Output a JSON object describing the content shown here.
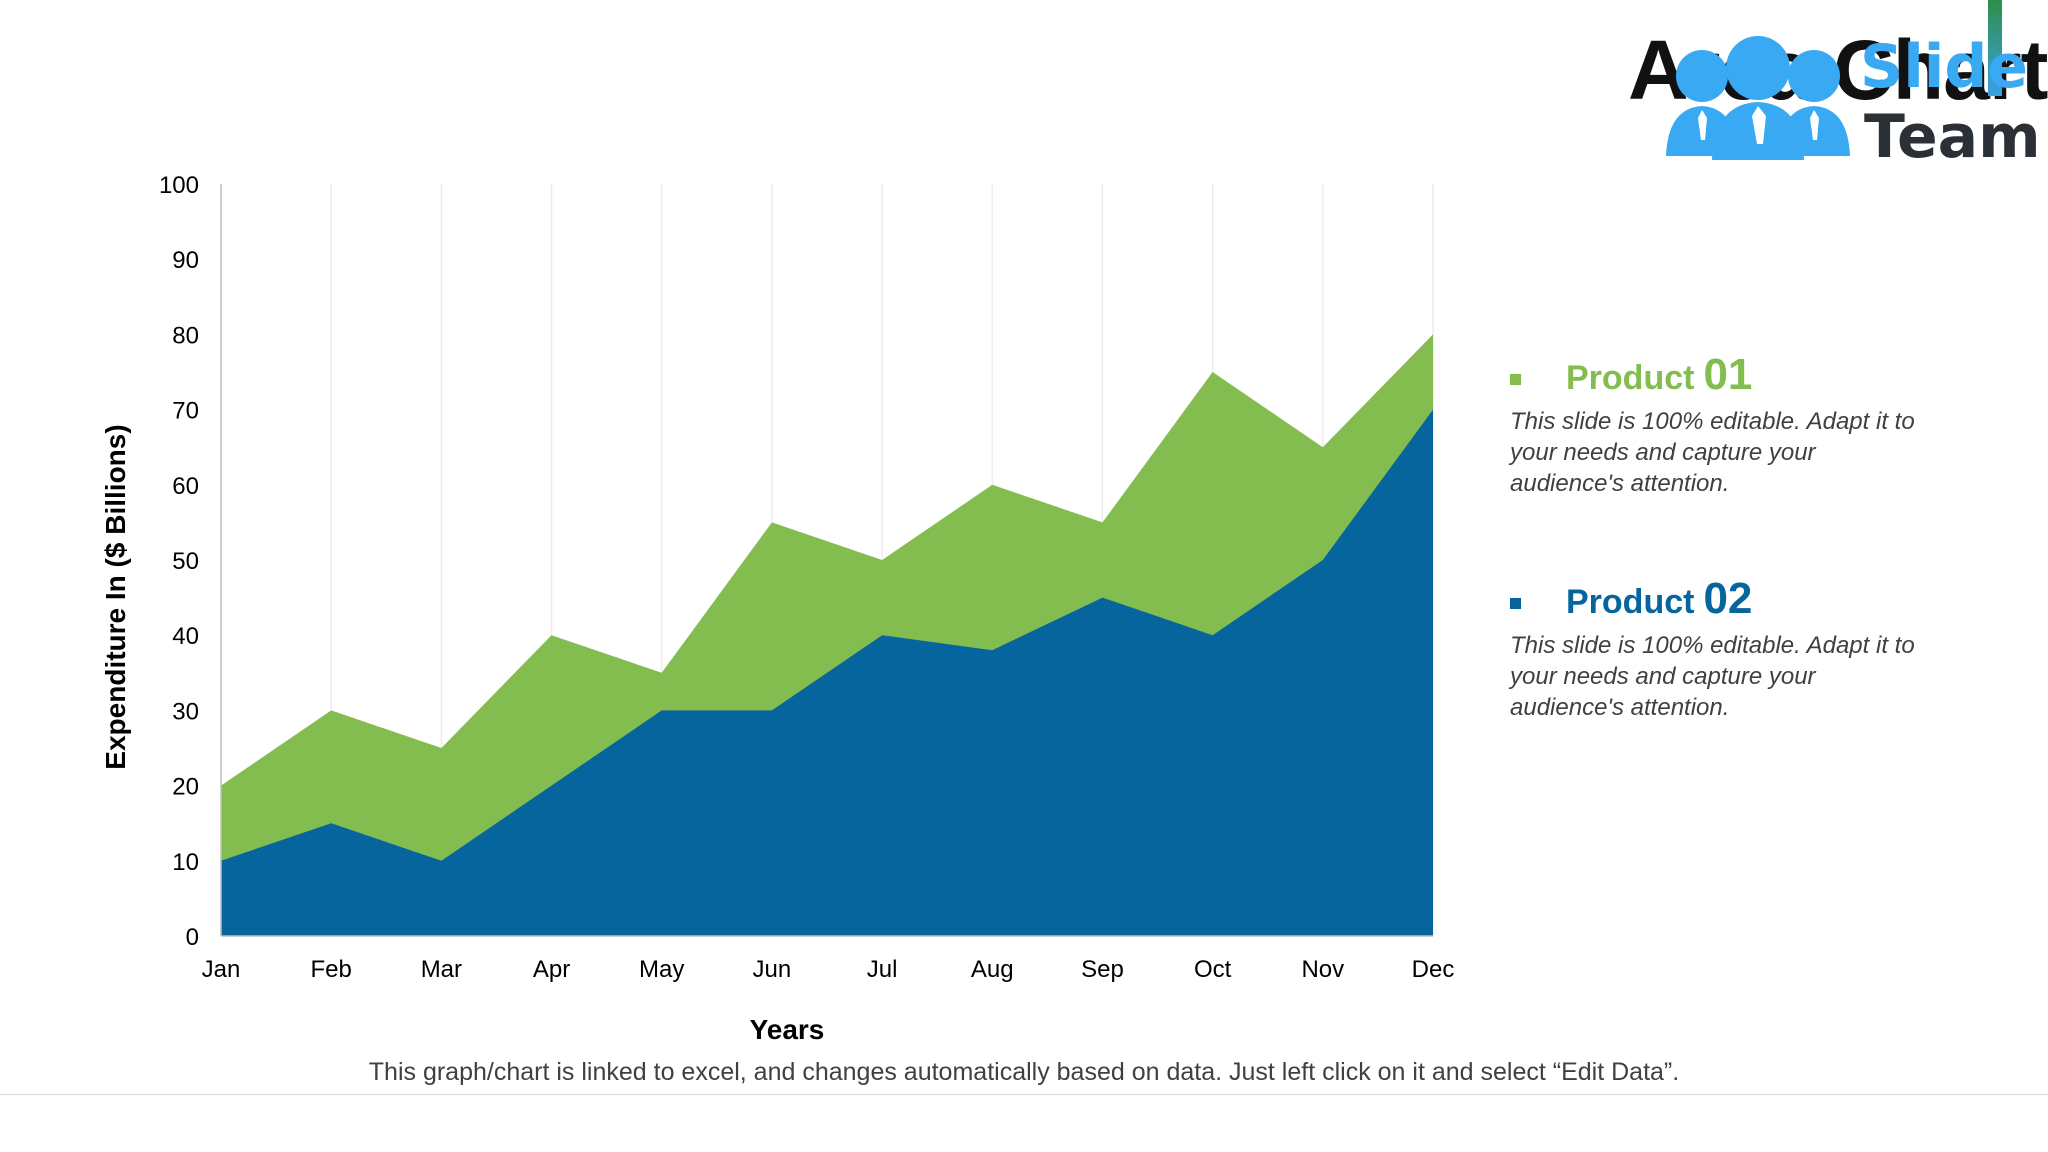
{
  "slide": {
    "title": "Area Chart",
    "footnote": "This graph/chart is linked to excel, and changes automatically based on data. Just left click on it and select “Edit Data”."
  },
  "logo": {
    "word1": "Slide",
    "word2": "Team"
  },
  "legend": [
    {
      "name": "Product",
      "number": "01",
      "color": "#84bd4f",
      "description": "This slide is 100% editable. Adapt it to your needs and capture your audience's attention."
    },
    {
      "name": "Product",
      "number": "02",
      "color": "#05659c",
      "description": "This slide is 100% editable. Adapt it to your needs and capture your audience's attention."
    }
  ],
  "colors": {
    "product01": "#84bd4f",
    "product02": "#05659c",
    "logo_blue": "#39a9f4"
  },
  "chart_data": {
    "type": "area",
    "stacked": false,
    "title": "",
    "xlabel": "Years",
    "ylabel": "Expenditure In ($ Billions)",
    "ylim": [
      0,
      100
    ],
    "yticks": [
      0,
      10,
      20,
      30,
      40,
      50,
      60,
      70,
      80,
      90,
      100
    ],
    "grid": "vertical",
    "categories": [
      "Jan",
      "Feb",
      "Mar",
      "Apr",
      "May",
      "Jun",
      "Jul",
      "Aug",
      "Sep",
      "Oct",
      "Nov",
      "Dec"
    ],
    "series": [
      {
        "name": "Product 01",
        "color": "#84bd4f",
        "values": [
          20,
          30,
          25,
          40,
          35,
          55,
          50,
          60,
          55,
          75,
          65,
          80
        ]
      },
      {
        "name": "Product 02",
        "color": "#05659c",
        "values": [
          10,
          15,
          10,
          20,
          30,
          30,
          40,
          38,
          45,
          40,
          50,
          70
        ]
      }
    ]
  }
}
